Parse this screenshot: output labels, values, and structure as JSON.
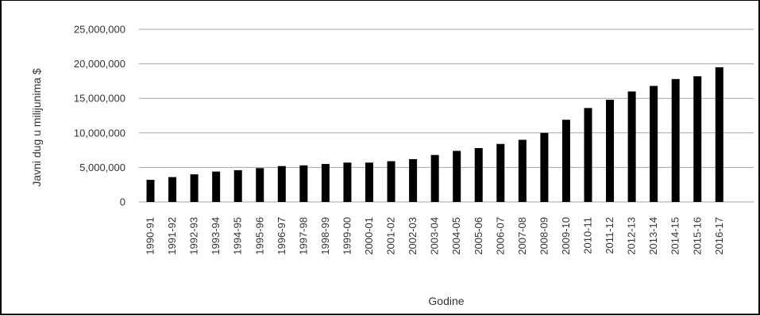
{
  "chart_data": {
    "type": "bar",
    "title": "",
    "xlabel": "Godine",
    "ylabel": "Javni dug u milijunima $",
    "ylim": [
      0,
      25000000
    ],
    "y_ticks": [
      0,
      5000000,
      10000000,
      15000000,
      20000000,
      25000000
    ],
    "y_tick_labels": [
      "0",
      "5,000,000",
      "10,000,000",
      "15,000,000",
      "20,000,000",
      "25,000,000"
    ],
    "grid": true,
    "legend": "none",
    "bar_color": "#000000",
    "grid_color": "#a6a6a6",
    "categories": [
      "1990-91",
      "1991-92",
      "1992-93",
      "1993-94",
      "1994-95",
      "1995-96",
      "1996-97",
      "1997-98",
      "1998-99",
      "1999-00",
      "2000-01",
      "2001-02",
      "2002-03",
      "2003-04",
      "2004-05",
      "2005-06",
      "2006-07",
      "2007-08",
      "2008-09",
      "2009-10",
      "2010-11",
      "2011-12",
      "2012-13",
      "2013-14",
      "2014-15",
      "2015-16",
      "2016-17"
    ],
    "values": [
      3200000,
      3600000,
      4000000,
      4400000,
      4600000,
      4900000,
      5200000,
      5300000,
      5500000,
      5700000,
      5700000,
      5900000,
      6200000,
      6800000,
      7400000,
      7800000,
      8400000,
      9000000,
      10000000,
      11900000,
      13600000,
      14800000,
      16000000,
      16800000,
      17800000,
      18200000,
      19500000
    ]
  }
}
